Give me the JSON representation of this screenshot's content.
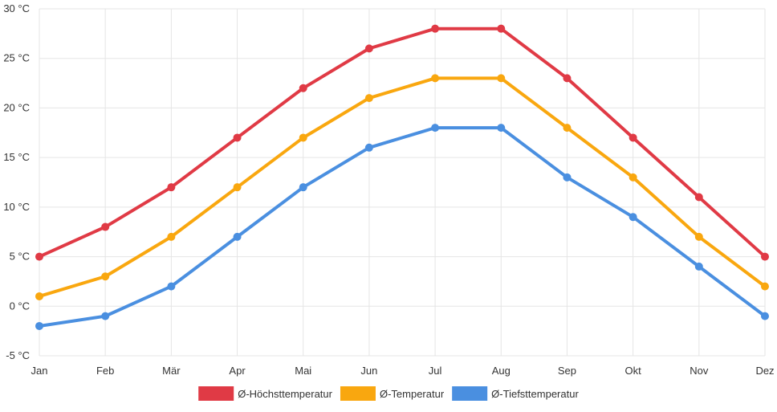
{
  "chart_data": {
    "type": "line",
    "title": "",
    "xlabel": "",
    "ylabel": "",
    "categories": [
      "Jan",
      "Feb",
      "Mär",
      "Apr",
      "Mai",
      "Jun",
      "Jul",
      "Aug",
      "Sep",
      "Okt",
      "Nov",
      "Dez"
    ],
    "ylim": [
      -5,
      30
    ],
    "yticks": [
      -5,
      0,
      5,
      10,
      15,
      20,
      25,
      30
    ],
    "ytick_labels": [
      "-5 °C",
      "0 °C",
      "5 °C",
      "10 °C",
      "15 °C",
      "20 °C",
      "25 °C",
      "30 °C"
    ],
    "grid": true,
    "legend_position": "bottom",
    "series": [
      {
        "name": "Ø-Höchsttemperatur",
        "color": "#e03a45",
        "values": [
          5,
          8,
          12,
          17,
          22,
          26,
          28,
          28,
          23,
          17,
          11,
          5
        ]
      },
      {
        "name": "Ø-Temperatur",
        "color": "#f9a70f",
        "values": [
          1,
          3,
          7,
          12,
          17,
          21,
          23,
          23,
          18,
          13,
          7,
          2
        ]
      },
      {
        "name": "Ø-Tiefsttemperatur",
        "color": "#4a8fe0",
        "values": [
          -2,
          -1,
          2,
          7,
          12,
          16,
          18,
          18,
          13,
          9,
          4,
          -1
        ]
      }
    ]
  }
}
